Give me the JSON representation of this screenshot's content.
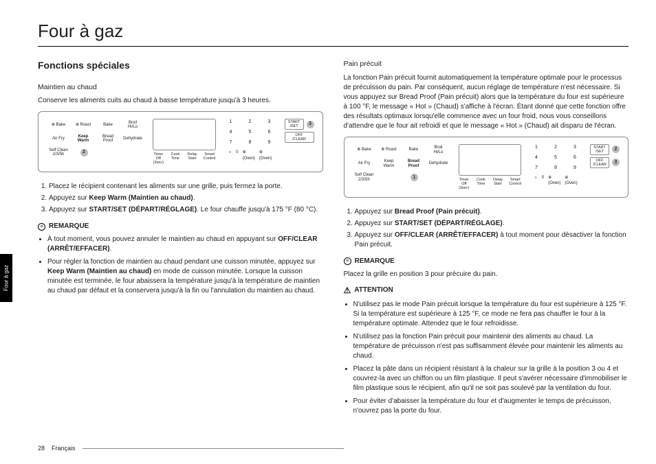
{
  "title": "Four à gaz",
  "sideTab": "Four à gaz",
  "left": {
    "sectionHeading": "Fonctions spéciales",
    "subHeading": "Maintien au chaud",
    "intro": "Conserve les aliments cuits au chaud à basse température jusqu'à 3 heures.",
    "steps": {
      "s1": "Placez le récipient contenant les aliments sur une grille, puis fermez la porte.",
      "s2a": "Appuyez sur ",
      "s2b": "Keep Warm (Maintien au chaud)",
      "s2c": ".",
      "s3a": "Appuyez sur ",
      "s3b": "START/SET (DÉPART/RÉGLAGE)",
      "s3c": ". Le four chauffe jusqu'à 175 °F (80 °C)."
    },
    "noteLabel": "REMARQUE",
    "bullets": {
      "b1a": "À tout moment, vous pouvez annuler le maintien au chaud en appuyant sur ",
      "b1b": "OFF/CLEAR (ARRÊT/EFFACER)",
      "b1c": ".",
      "b2a": "Pour régler la fonction de maintien au chaud pendant une cuisson minutée, appuyez sur ",
      "b2b": "Keep Warm (Maintien au chaud)",
      "b2c": " en mode de cuisson minutée. Lorsque la cuisson minutée est terminée, le four abaissera la température jusqu'à la température de maintien au chaud par défaut et la conservera jusqu'à la fin ou l'annulation du maintien au chaud."
    }
  },
  "right": {
    "subHeading": "Pain précuit",
    "intro": "La fonction Pain précuit fournit automatiquement la température optimale pour le processus de précuisson du pain. Par conséquent, aucun réglage de température n'est nécessaire. Si vous appuyez sur Bread Proof (Pain précuit) alors que la température du four est supérieure à 100 °F, le message « Hot » (Chaud) s'affiche à l'écran. Étant donné que cette fonction offre des résultats optimaux lorsqu'elle commence avec un four froid, nous vous conseillons d'attendre que le four ait refroidi et que le message « Hot » (Chaud) ait disparu de l'écran.",
    "steps": {
      "s1a": "Appuyez sur ",
      "s1b": "Bread Proof (Pain précuit)",
      "s1c": ".",
      "s2a": "Appuyez sur ",
      "s2b": "START/SET (DÉPART/RÉGLAGE)",
      "s2c": ".",
      "s3a": "Appuyez sur ",
      "s3b": "OFF/CLEAR (ARRÊT/EFFACER)",
      "s3c": " à tout moment pour désactiver la fonction Pain précuit."
    },
    "noteLabel": "REMARQUE",
    "noteText": "Placez la grille en position 3 pour précuire du pain.",
    "attnLabel": "ATTENTION",
    "attn": {
      "a1": "N'utilisez pas le mode Pain précuit lorsque la température du four est supérieure à 125 °F. Si la température est supérieure à 125 °F, ce mode ne fera pas chauffer le four à la température optimale. Attendez que le four refroidisse.",
      "a2": "N'utilisez pas la fonction Pain précuit pour maintenir des aliments au chaud. La température de précuisson n'est pas suffisamment élevée pour maintenir les aliments au chaud.",
      "a3": "Placez la pâte dans un récipient résistant à la chaleur sur la grille à la position 3 ou 4 et couvrez-la avec un chiffon ou un film plastique. Il peut s'avérer nécessaire d'immobiliser le film plastique sous le récipient, afin qu'il ne soit pas soulevé par la ventilation du four.",
      "a4": "Pour éviter d'abaisser la température du four et d'augmenter le temps de précuisson, n'ouvrez pas la porte du four."
    }
  },
  "panel": {
    "cells": {
      "bake": "⊕ Bake",
      "roast": "⊕ Roast",
      "bakeP": "Bake",
      "broil": "Broil\nHi/Lo",
      "airfry": "Air Fry",
      "keepwarm": "Keep\nWarm",
      "breadproof": "Bread\nProof",
      "dehyd": "Dehydrate",
      "selfclean": "Self Clean\n2/3/5h"
    },
    "keypad": {
      "k1": "1",
      "k2": "2",
      "k3": "3",
      "k4": "4",
      "k5": "5",
      "k6": "6",
      "k7": "7",
      "k8": "8",
      "k9": "9",
      "k0": "0",
      "kl": "☼",
      "kr1": "⊕\n(Oven)",
      "kr2": "⊕\n(Oven)"
    },
    "btns": {
      "start": "START\n/SET",
      "off": "OFF\n/CLEAR"
    },
    "bottom": {
      "b1": "Timer\nOff (3sec)",
      "b2": "Cook\nTime",
      "b3": "Delay\nStart",
      "b4": "Smart\nControl"
    }
  },
  "footer": {
    "page": "28",
    "lang": "Français"
  }
}
